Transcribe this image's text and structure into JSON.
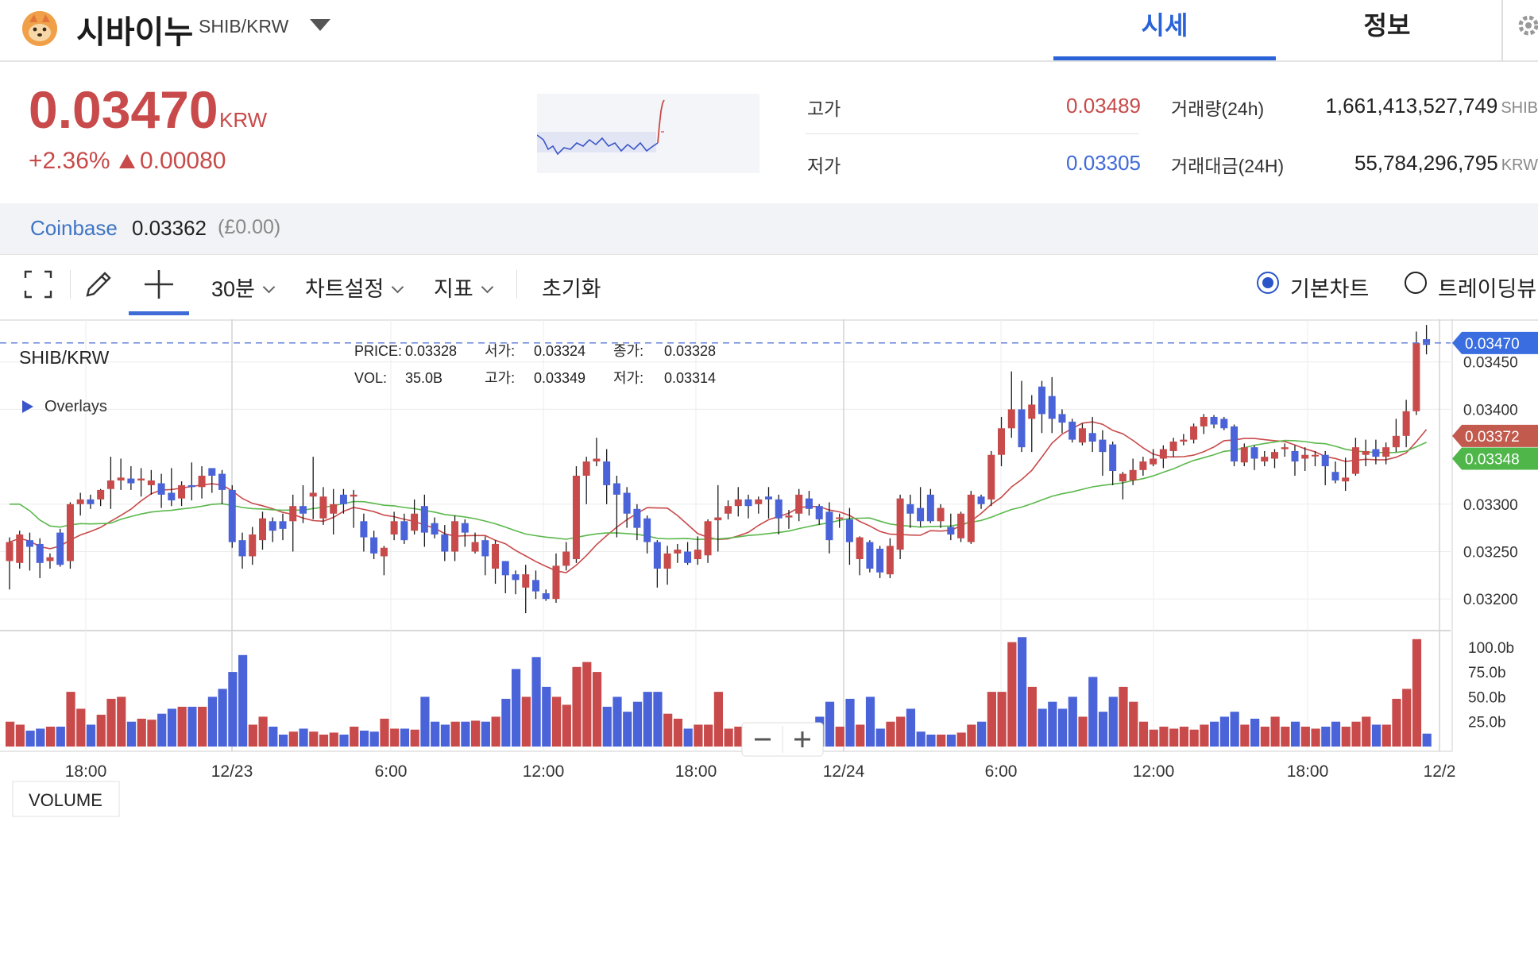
{
  "header": {
    "coin_name": "시바이누",
    "pair": "SHIB/KRW",
    "tabs": [
      {
        "label": "시세"
      },
      {
        "label": "정보"
      }
    ]
  },
  "price": {
    "current": "0.03470",
    "unit": "KRW",
    "change_pct": "+2.36%",
    "change_abs": "0.00080"
  },
  "stats": {
    "high_label": "고가",
    "high": "0.03489",
    "low_label": "저가",
    "low": "0.03305",
    "volume_label": "거래량(24h)",
    "volume": "1,661,413,527,749",
    "volume_unit": "SHIB",
    "value_label": "거래대금(24H)",
    "value": "55,784,296,795",
    "value_unit": "KRW"
  },
  "exchange": {
    "name": "Coinbase",
    "price": "0.03362",
    "diff": "(£0.00)"
  },
  "toolbar": {
    "interval": "30분",
    "chart_settings": "차트설정",
    "indicators": "지표",
    "reset": "초기화",
    "basic_chart": "기본차트",
    "trading_view": "트레이딩뷰"
  },
  "colors": {
    "up": "#c84a4a",
    "down": "#4a63d8",
    "ma_fast": "#c84a4a",
    "ma_slow": "#5bb84c",
    "accent": "#2a63d8"
  },
  "chart_data": {
    "type": "candlestick",
    "symbol": "SHIB/KRW",
    "overlays_label": "Overlays",
    "volume_label": "VOLUME",
    "info": {
      "price_label": "PRICE:",
      "price": "0.03328",
      "open_label": "서가:",
      "open": "0.03324",
      "close_label": "종가:",
      "close": "0.03328",
      "vol_label": "VOL:",
      "vol": "35.0B",
      "high_label": "고가:",
      "high": "0.03349",
      "low_label": "저가:",
      "low": "0.03314"
    },
    "x_ticks": [
      "18:00",
      "12/23",
      "6:00",
      "12:00",
      "18:00",
      "12/24",
      "6:00",
      "12:00",
      "18:00",
      "12/2"
    ],
    "y_ticks": [
      0.0345,
      0.034,
      0.033,
      0.0325,
      0.032
    ],
    "y_tick_labels": [
      "0.03450",
      "0.03400",
      "0.03300",
      "0.03250",
      "0.03200"
    ],
    "ylim": [
      0.0317,
      0.03495
    ],
    "volume_ticks": [
      "100.0b",
      "75.0b",
      "50.0b",
      "25.0b"
    ],
    "volume_tick_values": [
      100,
      75,
      50,
      25
    ],
    "volume_max": 115,
    "current_price": 0.0347,
    "current_price_label": "0.03470",
    "ma_fast_value": 0.03372,
    "ma_fast_label": "0.03372",
    "ma_slow_value": 0.03348,
    "ma_slow_label": "0.03348",
    "candles": [
      [
        0.0324,
        0.0326,
        0.0321,
        0.03265,
        "u",
        25
      ],
      [
        0.03238,
        0.03268,
        0.03232,
        0.03272,
        "u",
        22
      ],
      [
        0.03262,
        0.03255,
        0.0323,
        0.0327,
        "d",
        16
      ],
      [
        0.03258,
        0.03238,
        0.03222,
        0.03264,
        "d",
        18
      ],
      [
        0.0324,
        0.03244,
        0.03232,
        0.03248,
        "u",
        20
      ],
      [
        0.03236,
        0.0327,
        0.03234,
        0.03274,
        "d",
        20
      ],
      [
        0.0324,
        0.033,
        0.03232,
        0.03302,
        "u",
        55
      ],
      [
        0.033,
        0.03305,
        0.03288,
        0.03312,
        "u",
        38
      ],
      [
        0.03305,
        0.033,
        0.03295,
        0.0331,
        "d",
        22
      ],
      [
        0.03305,
        0.03315,
        0.03298,
        0.03316,
        "u",
        32
      ],
      [
        0.03316,
        0.03325,
        0.03295,
        0.0335,
        "u",
        48
      ],
      [
        0.03325,
        0.03328,
        0.03315,
        0.03348,
        "u",
        50
      ],
      [
        0.03327,
        0.03322,
        0.03315,
        0.0334,
        "d",
        25
      ],
      [
        0.03327,
        0.03325,
        0.03308,
        0.03338,
        "u",
        28
      ],
      [
        0.03325,
        0.0332,
        0.0331,
        0.03336,
        "u",
        27
      ],
      [
        0.03322,
        0.0331,
        0.03296,
        0.03332,
        "d",
        33
      ],
      [
        0.03312,
        0.03304,
        0.03298,
        0.03338,
        "d",
        38
      ],
      [
        0.03306,
        0.0332,
        0.03298,
        0.03324,
        "u",
        40
      ],
      [
        0.0332,
        0.03318,
        0.03304,
        0.03344,
        "d",
        40
      ],
      [
        0.03318,
        0.0333,
        0.03306,
        0.0334,
        "u",
        40
      ],
      [
        0.0333,
        0.03338,
        0.03312,
        0.03338,
        "d",
        50
      ],
      [
        0.03332,
        0.03315,
        0.033,
        0.03336,
        "d",
        58
      ],
      [
        0.03315,
        0.0326,
        0.03254,
        0.0332,
        "d",
        75
      ],
      [
        0.03262,
        0.03245,
        0.03232,
        0.0327,
        "d",
        92
      ],
      [
        0.03245,
        0.03268,
        0.03236,
        0.03276,
        "u",
        22
      ],
      [
        0.03262,
        0.03285,
        0.03252,
        0.03292,
        "u",
        30
      ],
      [
        0.03282,
        0.03272,
        0.0326,
        0.03286,
        "d",
        20
      ],
      [
        0.03274,
        0.03282,
        0.03262,
        0.0329,
        "d",
        12
      ],
      [
        0.03282,
        0.03298,
        0.0325,
        0.0331,
        "u",
        15
      ],
      [
        0.03298,
        0.0329,
        0.0328,
        0.0332,
        "d",
        18
      ],
      [
        0.03308,
        0.03312,
        0.03284,
        0.0335,
        "u",
        15
      ],
      [
        0.03285,
        0.03308,
        0.03278,
        0.03318,
        "u",
        12
      ],
      [
        0.0329,
        0.033,
        0.03268,
        0.03316,
        "u",
        14
      ],
      [
        0.033,
        0.0331,
        0.0329,
        0.03316,
        "d",
        12
      ],
      [
        0.0331,
        0.03308,
        0.03275,
        0.03315,
        "u",
        20
      ],
      [
        0.03282,
        0.03265,
        0.0325,
        0.0329,
        "d",
        16
      ],
      [
        0.03265,
        0.03248,
        0.03242,
        0.03272,
        "d",
        15
      ],
      [
        0.03254,
        0.03245,
        0.03225,
        0.03256,
        "u",
        28
      ],
      [
        0.03268,
        0.03282,
        0.03262,
        0.03292,
        "u",
        18
      ],
      [
        0.03282,
        0.03262,
        0.03258,
        0.0329,
        "d",
        18
      ],
      [
        0.03272,
        0.0329,
        0.03268,
        0.03305,
        "u",
        17
      ],
      [
        0.03298,
        0.0327,
        0.03255,
        0.0331,
        "d",
        50
      ],
      [
        0.0328,
        0.03268,
        0.03264,
        0.03286,
        "d",
        25
      ],
      [
        0.03268,
        0.0325,
        0.0324,
        0.03278,
        "d",
        22
      ],
      [
        0.0325,
        0.03282,
        0.0324,
        0.03288,
        "u",
        25
      ],
      [
        0.0328,
        0.0327,
        0.03255,
        0.03284,
        "d",
        25
      ],
      [
        0.0326,
        0.0325,
        0.03248,
        0.0327,
        "u",
        26
      ],
      [
        0.03262,
        0.03245,
        0.03225,
        0.03266,
        "d",
        25
      ],
      [
        0.03258,
        0.03232,
        0.03216,
        0.03262,
        "u",
        30
      ],
      [
        0.0324,
        0.03225,
        0.03206,
        0.0324,
        "d",
        48
      ],
      [
        0.03226,
        0.0322,
        0.03205,
        0.0323,
        "d",
        78
      ],
      [
        0.03226,
        0.03212,
        0.03185,
        0.03236,
        "u",
        50
      ],
      [
        0.0322,
        0.03208,
        0.032,
        0.0323,
        "d",
        90
      ],
      [
        0.03206,
        0.032,
        0.03198,
        0.0321,
        "d",
        60
      ],
      [
        0.032,
        0.03235,
        0.03196,
        0.03248,
        "u",
        50
      ],
      [
        0.03235,
        0.0325,
        0.0323,
        0.0326,
        "u",
        42
      ],
      [
        0.03242,
        0.0333,
        0.03238,
        0.0334,
        "u",
        80
      ],
      [
        0.0333,
        0.03345,
        0.033,
        0.0335,
        "u",
        85
      ],
      [
        0.03345,
        0.03348,
        0.0334,
        0.0337,
        "u",
        75
      ],
      [
        0.03345,
        0.0332,
        0.033,
        0.03358,
        "d",
        40
      ],
      [
        0.03322,
        0.0331,
        0.03265,
        0.0333,
        "d",
        50
      ],
      [
        0.03312,
        0.0329,
        0.03275,
        0.03318,
        "d",
        35
      ],
      [
        0.03295,
        0.03275,
        0.03262,
        0.033,
        "d",
        45
      ],
      [
        0.03285,
        0.0326,
        0.03248,
        0.03288,
        "d",
        55
      ],
      [
        0.0326,
        0.03232,
        0.03212,
        0.03262,
        "d",
        55
      ],
      [
        0.03232,
        0.03248,
        0.03215,
        0.03256,
        "u",
        33
      ],
      [
        0.03248,
        0.03252,
        0.03238,
        0.03258,
        "u",
        28
      ],
      [
        0.03238,
        0.0325,
        0.03236,
        0.0326,
        "d",
        18
      ],
      [
        0.03242,
        0.03252,
        0.03236,
        0.03266,
        "u",
        22
      ],
      [
        0.03246,
        0.03282,
        0.03238,
        0.03284,
        "u",
        22
      ],
      [
        0.03283,
        0.03286,
        0.0325,
        0.0332,
        "u",
        55
      ],
      [
        0.0329,
        0.03298,
        0.03284,
        0.03304,
        "u",
        18
      ],
      [
        0.03298,
        0.03305,
        0.03287,
        0.03318,
        "u",
        20
      ],
      [
        0.03305,
        0.03298,
        0.03285,
        0.0331,
        "d",
        18
      ],
      [
        0.033,
        0.03305,
        0.0329,
        0.03308,
        "u",
        18
      ],
      [
        0.03305,
        0.03308,
        0.03285,
        0.03318,
        "d",
        20
      ],
      [
        0.03305,
        0.03285,
        0.03268,
        0.0331,
        "d",
        20
      ],
      [
        0.03288,
        0.03286,
        0.03274,
        0.03294,
        "u",
        18
      ],
      [
        0.0329,
        0.0331,
        0.03282,
        0.03316,
        "u",
        15
      ],
      [
        0.03306,
        0.03295,
        0.03288,
        0.03314,
        "d",
        20
      ],
      [
        0.03298,
        0.03284,
        0.03278,
        0.033,
        "d",
        30
      ],
      [
        0.03292,
        0.03262,
        0.03248,
        0.03302,
        "d",
        45
      ],
      [
        0.03286,
        0.03286,
        0.03275,
        0.0329,
        "u",
        20
      ],
      [
        0.03284,
        0.0326,
        0.03236,
        0.03296,
        "d",
        48
      ],
      [
        0.03265,
        0.03242,
        0.03225,
        0.03266,
        "u",
        22
      ],
      [
        0.03232,
        0.0326,
        0.03228,
        0.03262,
        "d",
        50
      ],
      [
        0.03253,
        0.03228,
        0.03222,
        0.03256,
        "d",
        18
      ],
      [
        0.03226,
        0.03256,
        0.03222,
        0.03264,
        "u",
        25
      ],
      [
        0.03252,
        0.03306,
        0.03242,
        0.0331,
        "u",
        30
      ],
      [
        0.033,
        0.0329,
        0.03275,
        0.0331,
        "d",
        38
      ],
      [
        0.03296,
        0.03282,
        0.03276,
        0.03318,
        "d",
        15
      ],
      [
        0.03282,
        0.0331,
        0.0328,
        0.03316,
        "d",
        12
      ],
      [
        0.03296,
        0.03282,
        0.03275,
        0.033,
        "u",
        12
      ],
      [
        0.03276,
        0.03268,
        0.03262,
        0.0329,
        "d",
        12
      ],
      [
        0.03264,
        0.0329,
        0.0326,
        0.03292,
        "u",
        14
      ],
      [
        0.0326,
        0.0331,
        0.03258,
        0.03314,
        "u",
        22
      ],
      [
        0.033,
        0.03308,
        0.03295,
        0.0331,
        "d",
        25
      ],
      [
        0.03305,
        0.03352,
        0.03298,
        0.03356,
        "u",
        55
      ],
      [
        0.03352,
        0.0338,
        0.0334,
        0.03392,
        "u",
        55
      ],
      [
        0.0338,
        0.034,
        0.0337,
        0.0344,
        "u",
        105
      ],
      [
        0.034,
        0.0336,
        0.03355,
        0.0343,
        "d",
        110
      ],
      [
        0.0339,
        0.03405,
        0.03355,
        0.03415,
        "u",
        60
      ],
      [
        0.03395,
        0.03424,
        0.03375,
        0.0343,
        "d",
        38
      ],
      [
        0.0339,
        0.03414,
        0.03375,
        0.03434,
        "d",
        45
      ],
      [
        0.03395,
        0.03386,
        0.03375,
        0.034,
        "d",
        38
      ],
      [
        0.03387,
        0.03368,
        0.03365,
        0.0339,
        "d",
        50
      ],
      [
        0.0338,
        0.03365,
        0.03362,
        0.03385,
        "u",
        30
      ],
      [
        0.03375,
        0.03366,
        0.03355,
        0.03392,
        "d",
        70
      ],
      [
        0.03368,
        0.03355,
        0.0333,
        0.03378,
        "d",
        35
      ],
      [
        0.03363,
        0.03335,
        0.0332,
        0.03366,
        "d",
        50
      ],
      [
        0.03332,
        0.03324,
        0.03305,
        0.03334,
        "u",
        60
      ],
      [
        0.03325,
        0.03336,
        0.0332,
        0.03348,
        "u",
        45
      ],
      [
        0.03336,
        0.03345,
        0.0333,
        0.0335,
        "u",
        25
      ],
      [
        0.03342,
        0.03348,
        0.0334,
        0.03358,
        "u",
        17
      ],
      [
        0.03348,
        0.03358,
        0.03338,
        0.03362,
        "u",
        20
      ],
      [
        0.03356,
        0.03366,
        0.0335,
        0.0337,
        "u",
        18
      ],
      [
        0.03366,
        0.03368,
        0.03362,
        0.03374,
        "u",
        20
      ],
      [
        0.03368,
        0.03382,
        0.03364,
        0.03385,
        "u",
        17
      ],
      [
        0.03382,
        0.03392,
        0.03374,
        0.03395,
        "u",
        22
      ],
      [
        0.03392,
        0.03384,
        0.0338,
        0.03394,
        "d",
        25
      ],
      [
        0.0338,
        0.0339,
        0.03378,
        0.03392,
        "d",
        30
      ],
      [
        0.03382,
        0.03345,
        0.0334,
        0.03384,
        "d",
        35
      ],
      [
        0.03344,
        0.0336,
        0.0334,
        0.03364,
        "u",
        22
      ],
      [
        0.0336,
        0.03348,
        0.03336,
        0.03362,
        "d",
        28
      ],
      [
        0.0335,
        0.03345,
        0.0334,
        0.03356,
        "u",
        20
      ],
      [
        0.03348,
        0.03355,
        0.03338,
        0.03358,
        "u",
        30
      ],
      [
        0.03358,
        0.0336,
        0.0335,
        0.03364,
        "u",
        20
      ],
      [
        0.03356,
        0.03345,
        0.0333,
        0.03362,
        "d",
        25
      ],
      [
        0.03348,
        0.03352,
        0.03335,
        0.0336,
        "u",
        20
      ],
      [
        0.03352,
        0.03352,
        0.0334,
        0.03356,
        "u",
        18
      ],
      [
        0.03352,
        0.0334,
        0.0332,
        0.03356,
        "d",
        20
      ],
      [
        0.03334,
        0.03325,
        0.03322,
        0.03345,
        "d",
        25
      ],
      [
        0.03324,
        0.03328,
        0.03314,
        0.03349,
        "u",
        20
      ],
      [
        0.03332,
        0.0336,
        0.0333,
        0.0337,
        "u",
        25
      ],
      [
        0.03352,
        0.03356,
        0.0334,
        0.03368,
        "u",
        30
      ],
      [
        0.03358,
        0.0335,
        0.03342,
        0.03368,
        "d",
        22
      ],
      [
        0.0335,
        0.0336,
        0.03342,
        0.03365,
        "u",
        22
      ],
      [
        0.0336,
        0.03372,
        0.03355,
        0.0339,
        "u",
        48
      ],
      [
        0.03372,
        0.03398,
        0.0336,
        0.0341,
        "u",
        58
      ],
      [
        0.03398,
        0.0347,
        0.03394,
        0.03482,
        "u",
        108
      ],
      [
        0.03474,
        0.03468,
        0.03458,
        0.03489,
        "d",
        13
      ]
    ]
  }
}
